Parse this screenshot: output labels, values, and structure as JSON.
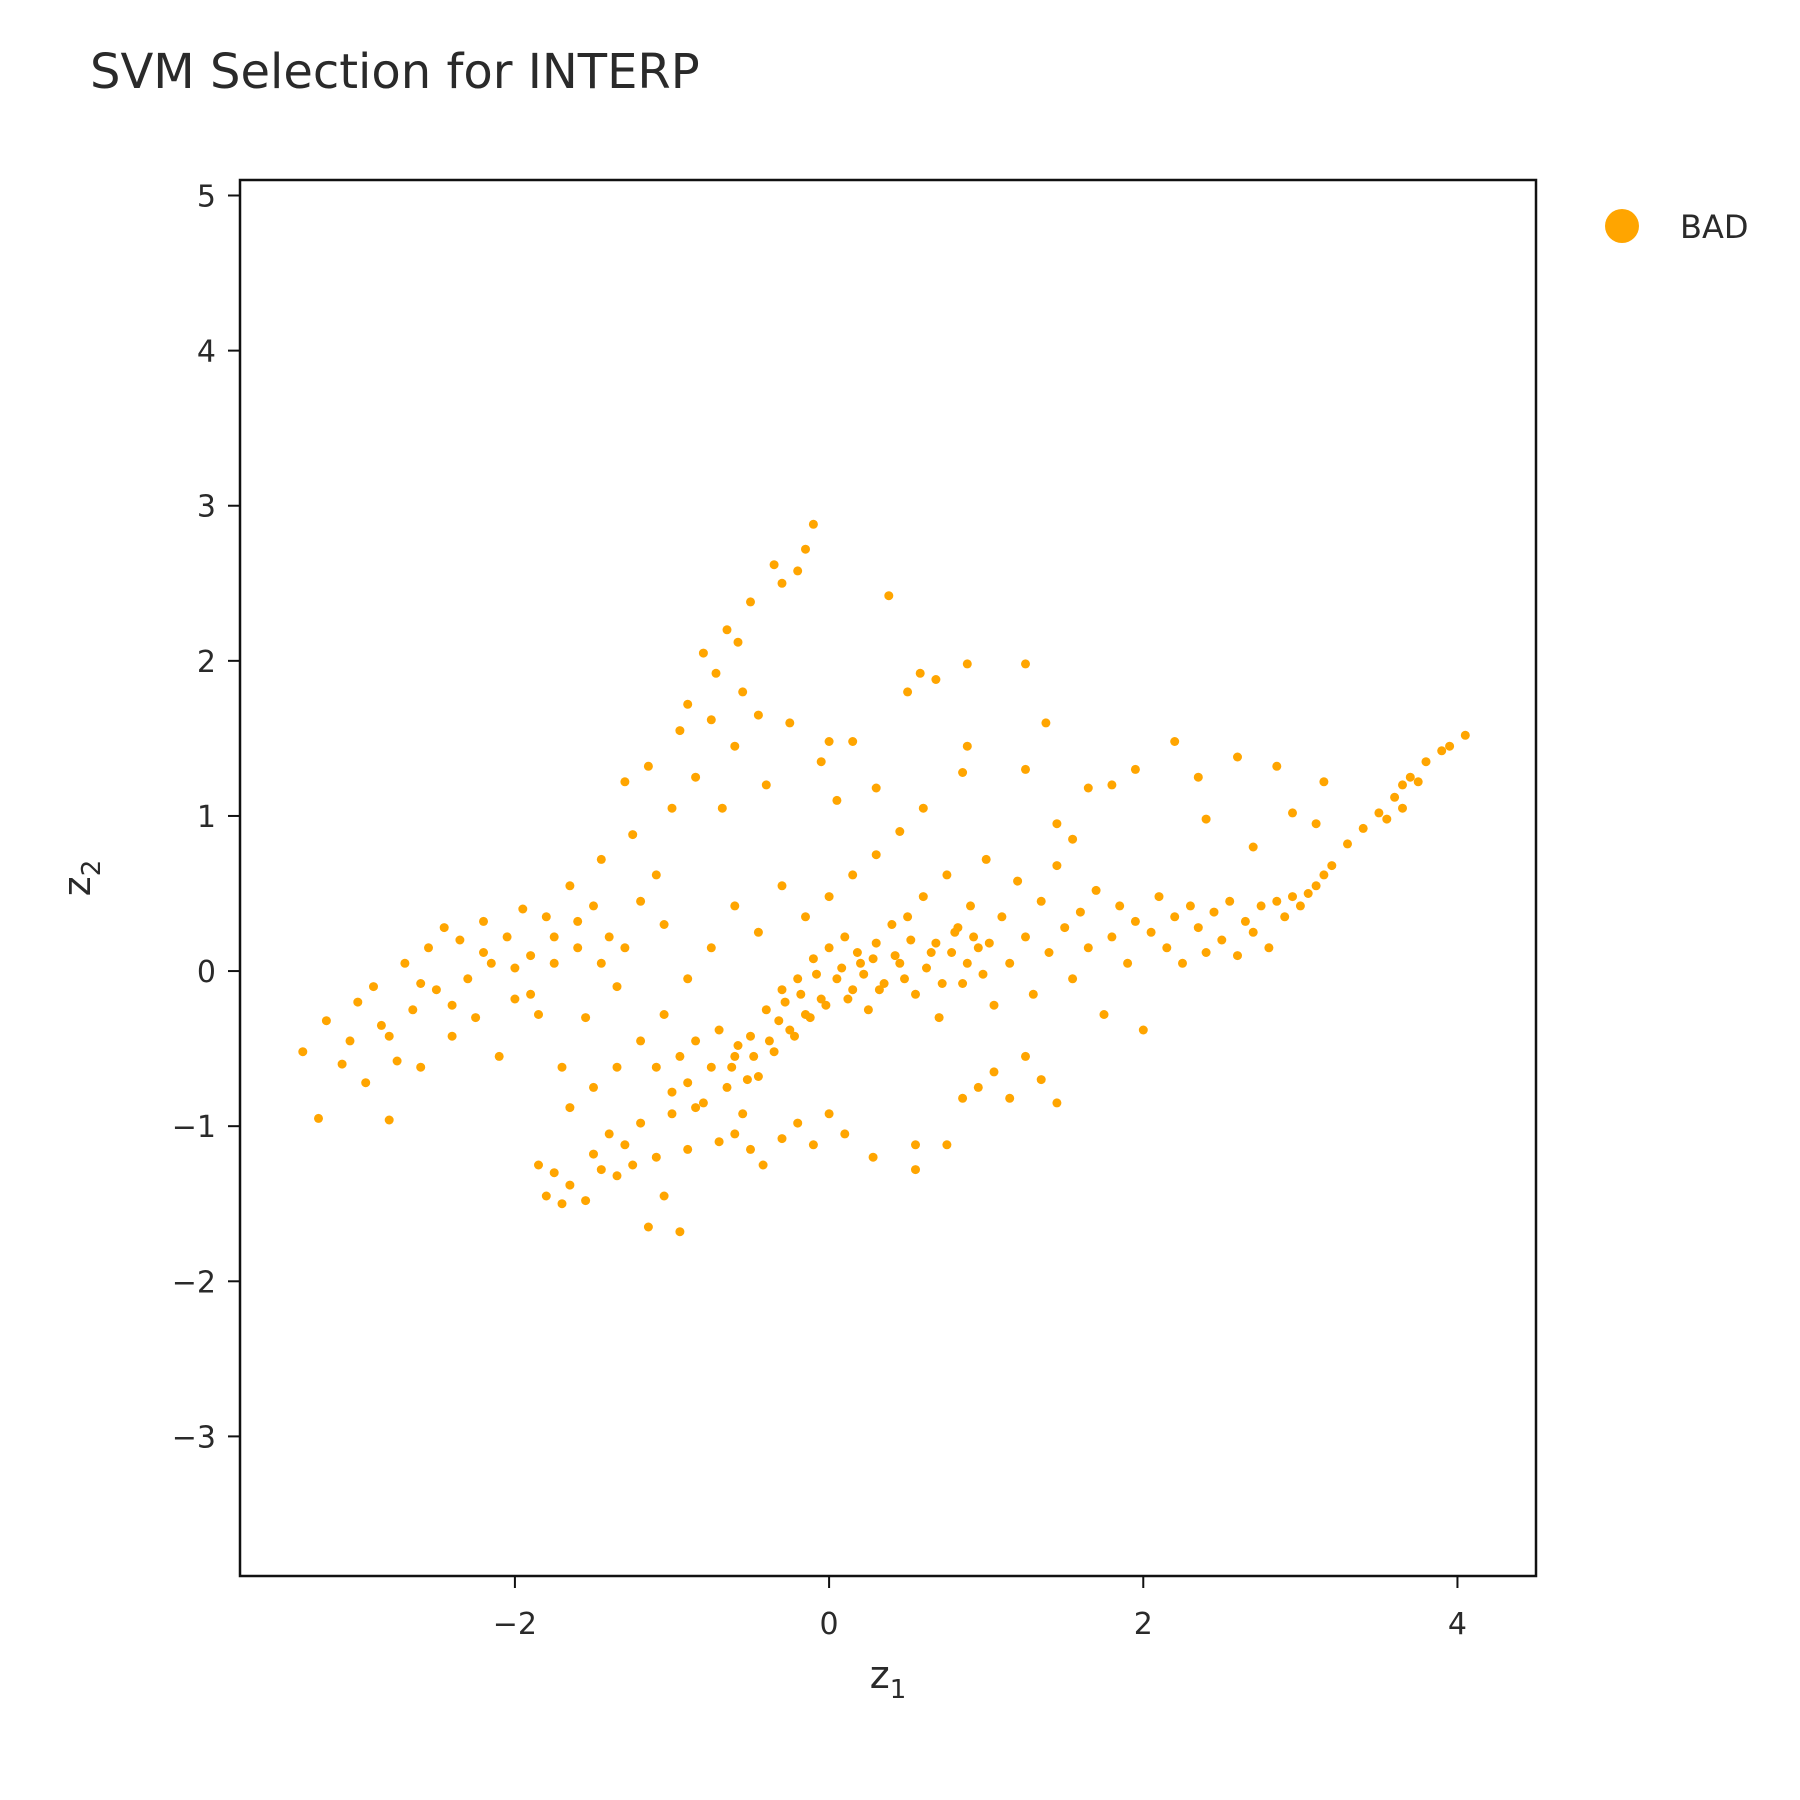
{
  "chart_data": {
    "type": "scatter",
    "title": "SVM Selection for INTERP",
    "xlabel": "z",
    "xlabel_sub": "1",
    "ylabel": "z",
    "ylabel_sub": "2",
    "xlim": [
      -3.75,
      4.5
    ],
    "ylim": [
      -3.9,
      5.1
    ],
    "xticks": [
      -2,
      0,
      2,
      4
    ],
    "xtick_labels": [
      "−2",
      "0",
      "2",
      "4"
    ],
    "yticks": [
      -3,
      -2,
      -1,
      0,
      1,
      2,
      3,
      4,
      5
    ],
    "ytick_labels": [
      "−3",
      "−2",
      "−1",
      "0",
      "1",
      "2",
      "3",
      "4",
      "5"
    ],
    "grid": false,
    "legend_position": "top-right-outside",
    "series": [
      {
        "name": "BAD",
        "color": "#FFA500",
        "points": [
          [
            -3.35,
            -0.52
          ],
          [
            -3.25,
            -0.95
          ],
          [
            -3.2,
            -0.32
          ],
          [
            -3.1,
            -0.6
          ],
          [
            -3.05,
            -0.45
          ],
          [
            -3.0,
            -0.2
          ],
          [
            -2.95,
            -0.72
          ],
          [
            -2.9,
            -0.1
          ],
          [
            -2.85,
            -0.35
          ],
          [
            -2.8,
            -0.96
          ],
          [
            -2.75,
            -0.58
          ],
          [
            -2.7,
            0.05
          ],
          [
            -2.65,
            -0.25
          ],
          [
            -2.6,
            -0.62
          ],
          [
            -2.55,
            0.15
          ],
          [
            -2.5,
            -0.12
          ],
          [
            -2.45,
            0.28
          ],
          [
            -2.4,
            -0.42
          ],
          [
            -2.35,
            0.2
          ],
          [
            -2.3,
            -0.05
          ],
          [
            -2.25,
            -0.3
          ],
          [
            -2.2,
            0.32
          ],
          [
            -2.15,
            0.05
          ],
          [
            -2.1,
            -0.55
          ],
          [
            -2.05,
            0.22
          ],
          [
            -2.0,
            -0.18
          ],
          [
            -1.95,
            0.4
          ],
          [
            -1.9,
            0.1
          ],
          [
            -1.85,
            -0.28
          ],
          [
            -1.8,
            0.35
          ],
          [
            -1.75,
            0.05
          ],
          [
            -1.7,
            -0.62
          ],
          [
            -1.65,
            0.55
          ],
          [
            -1.6,
            0.15
          ],
          [
            -1.55,
            -0.3
          ],
          [
            -1.5,
            0.42
          ],
          [
            -1.45,
            0.72
          ],
          [
            -1.4,
            0.22
          ],
          [
            -1.35,
            -0.1
          ],
          [
            -1.3,
            1.22
          ],
          [
            -1.25,
            0.88
          ],
          [
            -1.2,
            0.45
          ],
          [
            -1.15,
            1.32
          ],
          [
            -1.1,
            0.62
          ],
          [
            -1.05,
            0.3
          ],
          [
            -1.0,
            1.05
          ],
          [
            -0.95,
            1.55
          ],
          [
            -0.9,
            1.72
          ],
          [
            -0.85,
            1.25
          ],
          [
            -0.8,
            2.05
          ],
          [
            -0.75,
            1.62
          ],
          [
            -0.72,
            1.92
          ],
          [
            -0.68,
            1.05
          ],
          [
            -0.65,
            2.2
          ],
          [
            -0.6,
            1.45
          ],
          [
            -0.58,
            2.12
          ],
          [
            -0.55,
            1.8
          ],
          [
            -0.5,
            2.38
          ],
          [
            -0.45,
            1.65
          ],
          [
            -0.4,
            1.2
          ],
          [
            -0.35,
            2.62
          ],
          [
            -0.3,
            2.5
          ],
          [
            -0.25,
            1.6
          ],
          [
            -0.2,
            2.58
          ],
          [
            -0.15,
            2.72
          ],
          [
            -0.1,
            2.88
          ],
          [
            -0.05,
            1.35
          ],
          [
            0.0,
            1.48
          ],
          [
            0.05,
            1.1
          ],
          [
            0.15,
            1.48
          ],
          [
            0.3,
            1.18
          ],
          [
            0.38,
            2.42
          ],
          [
            0.5,
            1.8
          ],
          [
            0.58,
            1.92
          ],
          [
            0.68,
            1.88
          ],
          [
            0.88,
            1.98
          ],
          [
            0.88,
            1.45
          ],
          [
            1.25,
            1.98
          ],
          [
            1.38,
            1.6
          ],
          [
            1.25,
            1.3
          ],
          [
            -1.85,
            -1.25
          ],
          [
            -1.8,
            -1.45
          ],
          [
            -1.75,
            -1.3
          ],
          [
            -1.7,
            -1.5
          ],
          [
            -1.65,
            -1.38
          ],
          [
            -1.55,
            -1.48
          ],
          [
            -1.5,
            -1.18
          ],
          [
            -1.45,
            -1.28
          ],
          [
            -1.4,
            -1.05
          ],
          [
            -1.35,
            -1.32
          ],
          [
            -1.3,
            -1.12
          ],
          [
            -1.25,
            -1.25
          ],
          [
            -1.2,
            -0.98
          ],
          [
            -1.15,
            -1.65
          ],
          [
            -1.1,
            -1.2
          ],
          [
            -1.05,
            -1.45
          ],
          [
            -1.0,
            -0.92
          ],
          [
            -0.95,
            -1.68
          ],
          [
            -0.9,
            -1.15
          ],
          [
            -0.85,
            -0.88
          ],
          [
            -1.1,
            -0.62
          ],
          [
            -1.0,
            -0.78
          ],
          [
            -0.95,
            -0.55
          ],
          [
            -0.9,
            -0.72
          ],
          [
            -0.85,
            -0.45
          ],
          [
            -0.8,
            -0.85
          ],
          [
            -0.75,
            -0.62
          ],
          [
            -0.7,
            -0.38
          ],
          [
            -0.65,
            -0.75
          ],
          [
            -0.6,
            -0.55
          ],
          [
            -0.55,
            -0.92
          ],
          [
            -0.5,
            -0.42
          ],
          [
            -0.45,
            -0.68
          ],
          [
            -0.4,
            -0.25
          ],
          [
            -0.35,
            -0.52
          ],
          [
            -0.3,
            -0.12
          ],
          [
            -0.25,
            -0.38
          ],
          [
            -0.2,
            -0.05
          ],
          [
            -0.15,
            -0.28
          ],
          [
            -0.1,
            0.08
          ],
          [
            -0.05,
            -0.18
          ],
          [
            0.0,
            0.15
          ],
          [
            0.05,
            -0.05
          ],
          [
            0.1,
            0.22
          ],
          [
            0.15,
            -0.12
          ],
          [
            0.2,
            0.05
          ],
          [
            0.25,
            -0.25
          ],
          [
            0.3,
            0.18
          ],
          [
            0.35,
            -0.08
          ],
          [
            0.4,
            0.3
          ],
          [
            -0.7,
            -1.1
          ],
          [
            -0.6,
            -1.05
          ],
          [
            -0.5,
            -1.15
          ],
          [
            -0.42,
            -1.25
          ],
          [
            -0.3,
            -1.08
          ],
          [
            -0.2,
            -0.98
          ],
          [
            -0.1,
            -1.12
          ],
          [
            0.0,
            -0.92
          ],
          [
            0.1,
            -1.05
          ],
          [
            0.28,
            -1.2
          ],
          [
            0.55,
            -1.12
          ],
          [
            0.55,
            -1.28
          ],
          [
            0.75,
            -1.12
          ],
          [
            0.85,
            -0.82
          ],
          [
            0.95,
            -0.75
          ],
          [
            1.05,
            -0.65
          ],
          [
            1.15,
            -0.82
          ],
          [
            1.25,
            -0.55
          ],
          [
            1.35,
            -0.7
          ],
          [
            1.45,
            -0.85
          ],
          [
            0.45,
            0.05
          ],
          [
            0.5,
            0.35
          ],
          [
            0.55,
            -0.15
          ],
          [
            0.6,
            0.48
          ],
          [
            0.65,
            0.12
          ],
          [
            0.7,
            -0.3
          ],
          [
            0.75,
            0.62
          ],
          [
            0.8,
            0.25
          ],
          [
            0.85,
            -0.08
          ],
          [
            0.9,
            0.42
          ],
          [
            0.95,
            0.15
          ],
          [
            1.0,
            0.72
          ],
          [
            1.05,
            -0.22
          ],
          [
            1.1,
            0.35
          ],
          [
            1.15,
            0.05
          ],
          [
            1.2,
            0.58
          ],
          [
            1.25,
            0.22
          ],
          [
            1.3,
            -0.15
          ],
          [
            1.35,
            0.45
          ],
          [
            1.4,
            0.12
          ],
          [
            1.45,
            0.68
          ],
          [
            1.5,
            0.28
          ],
          [
            1.55,
            -0.05
          ],
          [
            1.6,
            0.38
          ],
          [
            1.65,
            0.15
          ],
          [
            1.7,
            0.52
          ],
          [
            1.75,
            -0.28
          ],
          [
            1.8,
            0.22
          ],
          [
            1.85,
            0.42
          ],
          [
            1.9,
            0.05
          ],
          [
            1.95,
            0.32
          ],
          [
            2.0,
            -0.38
          ],
          [
            2.05,
            0.25
          ],
          [
            2.1,
            0.48
          ],
          [
            2.15,
            0.15
          ],
          [
            2.2,
            0.35
          ],
          [
            2.25,
            0.05
          ],
          [
            2.3,
            0.42
          ],
          [
            2.35,
            0.28
          ],
          [
            2.4,
            0.12
          ],
          [
            2.45,
            0.38
          ],
          [
            2.5,
            0.2
          ],
          [
            2.55,
            0.45
          ],
          [
            2.6,
            0.1
          ],
          [
            2.65,
            0.32
          ],
          [
            2.7,
            0.25
          ],
          [
            2.75,
            0.42
          ],
          [
            2.8,
            0.15
          ],
          [
            2.85,
            0.45
          ],
          [
            2.9,
            0.35
          ],
          [
            2.95,
            0.48
          ],
          [
            3.0,
            0.42
          ],
          [
            3.05,
            0.5
          ],
          [
            3.1,
            0.55
          ],
          [
            3.15,
            0.62
          ],
          [
            3.2,
            0.68
          ],
          [
            3.3,
            0.82
          ],
          [
            3.4,
            0.92
          ],
          [
            3.5,
            1.02
          ],
          [
            3.6,
            1.12
          ],
          [
            3.65,
            1.2
          ],
          [
            3.7,
            1.25
          ],
          [
            3.75,
            1.22
          ],
          [
            3.8,
            1.35
          ],
          [
            3.9,
            1.42
          ],
          [
            3.95,
            1.45
          ],
          [
            4.05,
            1.52
          ],
          [
            3.65,
            1.05
          ],
          [
            3.55,
            0.98
          ],
          [
            3.15,
            1.22
          ],
          [
            2.85,
            1.32
          ],
          [
            2.6,
            1.38
          ],
          [
            2.35,
            1.25
          ],
          [
            2.2,
            1.48
          ],
          [
            2.4,
            0.98
          ],
          [
            2.7,
            0.8
          ],
          [
            2.95,
            1.02
          ],
          [
            3.1,
            0.95
          ],
          [
            1.95,
            1.3
          ],
          [
            1.8,
            1.2
          ],
          [
            1.65,
            1.18
          ],
          [
            1.55,
            0.85
          ],
          [
            1.45,
            0.95
          ],
          [
            0.85,
            1.28
          ],
          [
            0.6,
            1.05
          ],
          [
            0.45,
            0.9
          ],
          [
            0.3,
            0.75
          ],
          [
            0.15,
            0.62
          ],
          [
            0.0,
            0.48
          ],
          [
            -0.15,
            0.35
          ],
          [
            -0.3,
            0.55
          ],
          [
            -0.45,
            0.25
          ],
          [
            -0.6,
            0.42
          ],
          [
            -0.75,
            0.15
          ],
          [
            -0.9,
            -0.05
          ],
          [
            -1.05,
            -0.28
          ],
          [
            -1.2,
            -0.45
          ],
          [
            -1.35,
            -0.62
          ],
          [
            -1.5,
            -0.75
          ],
          [
            -1.65,
            -0.88
          ],
          [
            -0.62,
            -0.62
          ],
          [
            -0.58,
            -0.48
          ],
          [
            -0.52,
            -0.7
          ],
          [
            -0.48,
            -0.55
          ],
          [
            -0.38,
            -0.45
          ],
          [
            -0.32,
            -0.32
          ],
          [
            -0.28,
            -0.2
          ],
          [
            -0.22,
            -0.42
          ],
          [
            -0.18,
            -0.15
          ],
          [
            -0.12,
            -0.3
          ],
          [
            -0.08,
            -0.02
          ],
          [
            -0.02,
            -0.22
          ],
          [
            0.08,
            0.02
          ],
          [
            0.12,
            -0.18
          ],
          [
            0.18,
            0.12
          ],
          [
            0.22,
            -0.02
          ],
          [
            0.28,
            0.08
          ],
          [
            0.32,
            -0.12
          ],
          [
            0.42,
            0.1
          ],
          [
            0.48,
            -0.05
          ],
          [
            0.52,
            0.2
          ],
          [
            0.62,
            0.02
          ],
          [
            0.68,
            0.18
          ],
          [
            0.72,
            -0.08
          ],
          [
            0.78,
            0.12
          ],
          [
            0.82,
            0.28
          ],
          [
            0.88,
            0.05
          ],
          [
            0.92,
            0.22
          ],
          [
            0.98,
            -0.02
          ],
          [
            1.02,
            0.18
          ],
          [
            -2.2,
            0.12
          ],
          [
            -2.0,
            0.02
          ],
          [
            -1.9,
            -0.15
          ],
          [
            -1.75,
            0.22
          ],
          [
            -1.6,
            0.32
          ],
          [
            -1.45,
            0.05
          ],
          [
            -1.3,
            0.15
          ],
          [
            -2.4,
            -0.22
          ],
          [
            -2.6,
            -0.08
          ],
          [
            -2.8,
            -0.42
          ]
        ]
      }
    ]
  }
}
